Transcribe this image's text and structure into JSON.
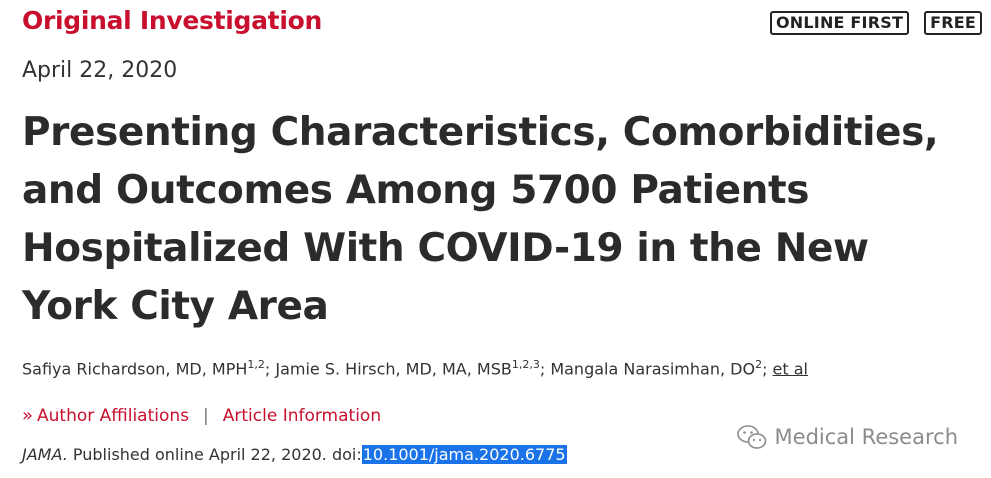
{
  "header": {
    "article_type": "Original Investigation",
    "badges": [
      "ONLINE FIRST",
      "FREE"
    ],
    "date": "April 22, 2020"
  },
  "article": {
    "title": "Presenting Characteristics, Comorbidities, and Outcomes Among 5700 Patients Hospitalized With COVID-19 in the New York City Area",
    "authors": [
      {
        "name": "Safiya Richardson, MD, MPH",
        "affil": "1,2"
      },
      {
        "name": "Jamie S. Hirsch, MD, MA, MSB",
        "affil": "1,2,3"
      },
      {
        "name": "Mangala Narasimhan, DO",
        "affil": "2"
      }
    ],
    "et_al": "et al",
    "links": {
      "author_affiliations": "Author Affiliations",
      "separator": "|",
      "article_information": "Article Information"
    },
    "citation": {
      "journal": "JAMA.",
      "published": " Published online April 22, 2020. doi:",
      "doi": "10.1001/jama.2020.6775"
    }
  },
  "watermark": {
    "text": "Medical Research",
    "icon": "wechat-icon"
  },
  "colors": {
    "accent": "#c8102e",
    "highlight": "#1a73e8",
    "text": "#333333"
  }
}
